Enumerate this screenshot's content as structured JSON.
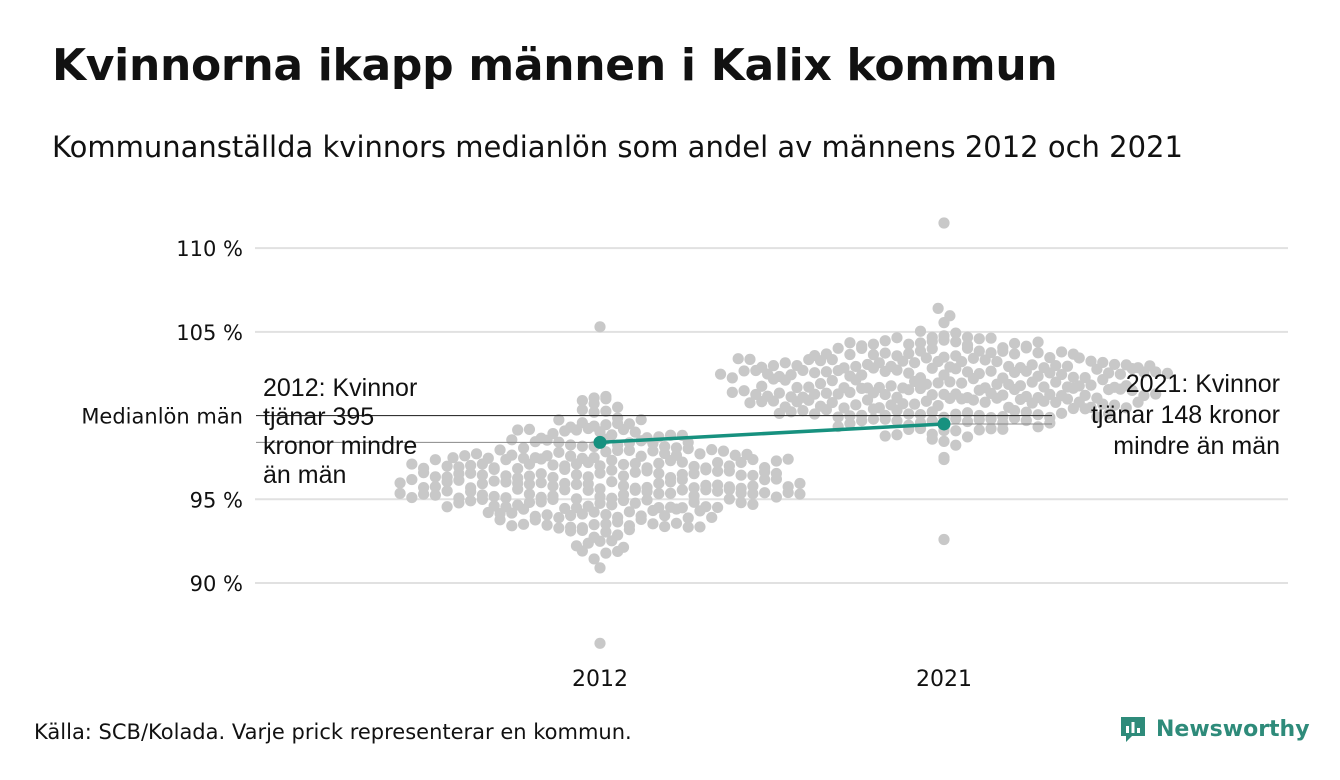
{
  "title": "Kvinnorna ikapp männen i Kalix kommun",
  "subtitle": "Kommunanställda kvinnors medianlön som andel av männens 2012 och 2021",
  "source": "Källa: SCB/Kolada. Varje prick representerar en kommun.",
  "brand": "Newsworthy",
  "colors": {
    "dot": "#c8c8c8",
    "highlight": "#17917f",
    "grid": "#e1e1e1",
    "reference": "#555555"
  },
  "chart_data": {
    "type": "scatter",
    "subtype": "beeswarm-with-highlight-line",
    "categories": [
      "2012",
      "2021"
    ],
    "y_ticks": [
      {
        "value": 90,
        "label": "90 %"
      },
      {
        "value": 95,
        "label": "95 %"
      },
      {
        "value": 105,
        "label": "105 %"
      },
      {
        "value": 110,
        "label": "110 %"
      }
    ],
    "ylim": [
      86,
      111.5
    ],
    "reference_line": {
      "value": 100,
      "label": "Medianlön män"
    },
    "highlight": {
      "values": [
        98.4,
        99.5
      ]
    },
    "swarms": [
      {
        "category": "2012",
        "min": 86.4,
        "max": 105.3,
        "median": 96.5,
        "spread": 6.0,
        "max_width": 6.5
      },
      {
        "category": "2021",
        "min": 92.6,
        "max": 111.5,
        "median": 101.8,
        "spread": 5.0,
        "max_width": 6.5
      }
    ],
    "annotations": [
      {
        "category": "2012",
        "lines": [
          "2012: Kvinnor",
          "tjänar 395",
          "kronor mindre",
          "än män"
        ]
      },
      {
        "category": "2021",
        "lines": [
          "2021: Kvinnor",
          "tjänar 148 kronor",
          "mindre än män"
        ]
      }
    ]
  }
}
